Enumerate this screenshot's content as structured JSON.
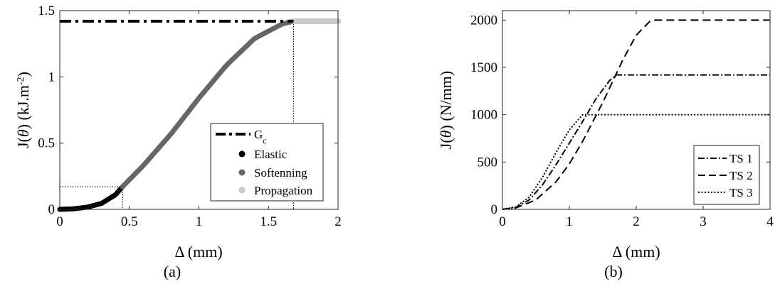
{
  "chart_data": [
    {
      "type": "line",
      "caption": "(a)",
      "xlabel_parts": [
        "Δ",
        " (mm)"
      ],
      "ylabel_parts": [
        "J(",
        "θ",
        ") (kJ.m",
        "-2",
        ")"
      ],
      "xlim": [
        0,
        2
      ],
      "ylim": [
        0,
        1.5
      ],
      "xticks": [
        0,
        0.5,
        1,
        1.5,
        2
      ],
      "xtick_labels": [
        "0",
        "0.5",
        "1",
        "1.5",
        "2"
      ],
      "yticks": [
        0,
        0.5,
        1,
        1.5
      ],
      "ytick_labels": [
        "0",
        "0.5",
        "1",
        "1.5"
      ],
      "grid": false,
      "legend_position": "bottom-right",
      "gc": 1.42,
      "delta_elastic_end": 0.45,
      "delta_softening_end": 1.68,
      "j_elastic_end": 0.17,
      "legend": [
        {
          "key": "gc",
          "label": "G",
          "sub": "c",
          "style": "dashdot-thick"
        },
        {
          "key": "elastic",
          "label": "Elastic",
          "style": "dot",
          "color": "#000000"
        },
        {
          "key": "softening",
          "label": "Softenning",
          "style": "dot",
          "color": "#666666"
        },
        {
          "key": "propagation",
          "label": "Propagation",
          "style": "dot",
          "color": "#c8c8c8"
        }
      ],
      "series": [
        {
          "name": "Elastic",
          "color": "#000000",
          "x": [
            0,
            0.1,
            0.2,
            0.3,
            0.4,
            0.45
          ],
          "y": [
            0,
            0.004,
            0.017,
            0.045,
            0.11,
            0.17
          ]
        },
        {
          "name": "Softenning",
          "color": "#666666",
          "x": [
            0.45,
            0.6,
            0.8,
            1.0,
            1.2,
            1.4,
            1.6,
            1.68
          ],
          "y": [
            0.17,
            0.33,
            0.57,
            0.84,
            1.09,
            1.29,
            1.4,
            1.42
          ]
        },
        {
          "name": "Propagation",
          "color": "#c8c8c8",
          "x": [
            1.68,
            1.8,
            1.9,
            2.0
          ],
          "y": [
            1.42,
            1.42,
            1.42,
            1.42
          ]
        }
      ]
    },
    {
      "type": "line",
      "caption": "(b)",
      "xlabel_parts": [
        "Δ",
        " (mm)"
      ],
      "ylabel_parts": [
        "J(",
        "θ",
        ") (N/mm)"
      ],
      "xlim": [
        0,
        4
      ],
      "ylim": [
        0,
        2100
      ],
      "xticks": [
        0,
        1,
        2,
        3,
        4
      ],
      "xtick_labels": [
        "0",
        "1",
        "2",
        "3",
        "4"
      ],
      "yticks": [
        0,
        500,
        1000,
        1500,
        2000
      ],
      "ytick_labels": [
        "0",
        "500",
        "1000",
        "1500",
        "2000"
      ],
      "grid": false,
      "legend_position": "bottom-right",
      "legend": [
        {
          "key": "ts1",
          "label": "TS 1",
          "style": "dashdot"
        },
        {
          "key": "ts2",
          "label": "TS 2",
          "style": "dashed"
        },
        {
          "key": "ts3",
          "label": "TS 3",
          "style": "dotted"
        }
      ],
      "series": [
        {
          "name": "TS 1",
          "style": "dashdot",
          "x": [
            0,
            0.2,
            0.4,
            0.6,
            0.8,
            1.0,
            1.2,
            1.4,
            1.6,
            1.7,
            2.0,
            3.0,
            4.0
          ],
          "y": [
            0,
            20,
            100,
            260,
            470,
            700,
            930,
            1170,
            1360,
            1420,
            1420,
            1420,
            1420
          ]
        },
        {
          "name": "TS 2",
          "style": "dashed",
          "x": [
            0,
            0.2,
            0.5,
            0.8,
            1.0,
            1.2,
            1.5,
            1.8,
            2.0,
            2.2,
            2.25,
            3.0,
            4.0
          ],
          "y": [
            0,
            15,
            100,
            290,
            480,
            720,
            1130,
            1580,
            1840,
            1985,
            2000,
            2000,
            2000
          ]
        },
        {
          "name": "TS 3",
          "style": "dotted",
          "x": [
            0,
            0.2,
            0.4,
            0.6,
            0.8,
            1.0,
            1.2,
            1.4,
            1.45,
            2.0,
            3.0,
            4.0
          ],
          "y": [
            0,
            25,
            130,
            340,
            600,
            840,
            1000,
            1000,
            1000,
            1000,
            1000,
            1000
          ]
        }
      ]
    }
  ]
}
